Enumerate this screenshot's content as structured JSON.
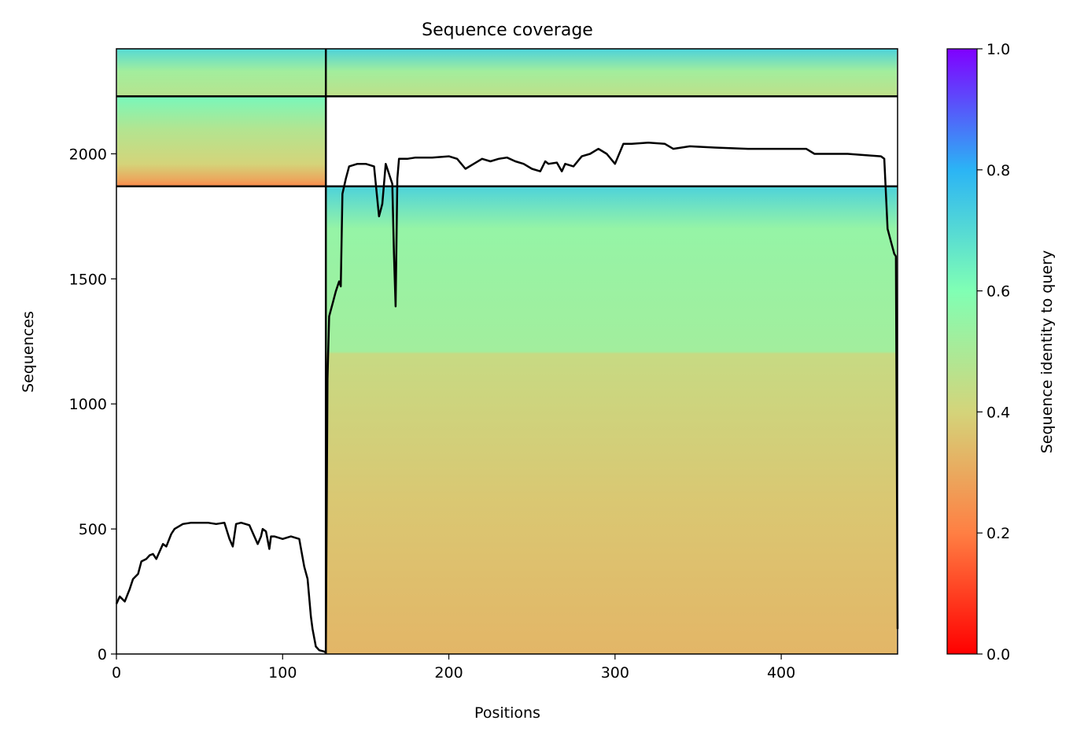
{
  "chart_data": {
    "type": "heatmap",
    "title": "Sequence coverage",
    "xlabel": "Positions",
    "ylabel": "Sequences",
    "xlim": [
      0,
      470
    ],
    "ylim": [
      0,
      2420
    ],
    "xticks": [
      0,
      100,
      200,
      300,
      400
    ],
    "yticks": [
      0,
      500,
      1000,
      1500,
      2000
    ],
    "grid": false,
    "colorbar": {
      "label": "Sequence identity to query",
      "range": [
        0,
        1
      ],
      "ticks": [
        0.0,
        0.2,
        0.4,
        0.6,
        0.8,
        1.0
      ],
      "tick_labels": [
        "0.0",
        "0.2",
        "0.4",
        "0.6",
        "0.8",
        "1.0"
      ],
      "colormap": "rainbow_r",
      "colors": [
        "#ff0000",
        "#ff7f43",
        "#d4d47a",
        "#80ffb4",
        "#2bb4f5",
        "#8000ff"
      ]
    },
    "blocks": [
      {
        "name": "",
        "x": [
          0,
          126
        ],
        "y": [
          0,
          1870
        ],
        "filled": false
      },
      {
        "name": "",
        "x": [
          126,
          470
        ],
        "y": [
          0,
          1870
        ],
        "filled": true,
        "identity_bands": [
          [
            0,
            0.33
          ],
          [
            600,
            0.37
          ],
          [
            1200,
            0.43
          ],
          [
            1210,
            0.52
          ],
          [
            1700,
            0.55
          ],
          [
            1870,
            0.72
          ]
        ]
      },
      {
        "name": "",
        "x": [
          0,
          126
        ],
        "y": [
          1870,
          2230
        ],
        "filled": true,
        "identity_bands": [
          [
            1870,
            0.22
          ],
          [
            1900,
            0.3
          ],
          [
            1960,
            0.4
          ],
          [
            2100,
            0.48
          ],
          [
            2230,
            0.62
          ]
        ]
      },
      {
        "name": "",
        "x": [
          126,
          470
        ],
        "y": [
          1870,
          2230
        ],
        "filled": false
      },
      {
        "name": "",
        "x": [
          0,
          126
        ],
        "y": [
          2230,
          2420
        ],
        "filled": true,
        "identity_bands": [
          [
            2230,
            0.47
          ],
          [
            2330,
            0.52
          ],
          [
            2420,
            0.7
          ]
        ]
      },
      {
        "name": "",
        "x": [
          126,
          470
        ],
        "y": [
          2230,
          2420
        ],
        "filled": true,
        "identity_bands": [
          [
            2230,
            0.45
          ],
          [
            2330,
            0.52
          ],
          [
            2420,
            0.72
          ]
        ]
      }
    ],
    "block_boundaries": {
      "x": [
        126
      ],
      "y": [
        1870,
        2230
      ]
    },
    "coverage": {
      "name": "",
      "x": [
        0,
        2,
        5,
        8,
        10,
        13,
        15,
        18,
        20,
        22,
        24,
        26,
        28,
        30,
        33,
        35,
        40,
        45,
        50,
        55,
        60,
        65,
        68,
        70,
        72,
        75,
        80,
        85,
        87,
        88,
        90,
        92,
        93,
        95,
        100,
        105,
        110,
        113,
        115,
        117,
        118,
        120,
        122,
        125,
        126,
        127,
        128,
        130,
        132,
        134,
        135,
        136,
        138,
        140,
        145,
        150,
        155,
        158,
        160,
        162,
        164,
        166,
        167,
        168,
        169,
        170,
        175,
        180,
        190,
        200,
        205,
        210,
        215,
        220,
        225,
        230,
        235,
        240,
        245,
        250,
        255,
        258,
        260,
        265,
        268,
        270,
        275,
        280,
        285,
        290,
        295,
        300,
        305,
        310,
        320,
        330,
        335,
        340,
        345,
        360,
        380,
        400,
        415,
        420,
        440,
        460,
        462,
        464,
        466,
        468,
        469,
        470
      ],
      "y": [
        200,
        230,
        210,
        260,
        300,
        320,
        370,
        380,
        395,
        400,
        380,
        410,
        440,
        430,
        480,
        500,
        520,
        525,
        525,
        525,
        520,
        525,
        460,
        430,
        520,
        525,
        515,
        440,
        470,
        500,
        490,
        420,
        470,
        470,
        460,
        470,
        460,
        350,
        300,
        150,
        100,
        30,
        15,
        10,
        5,
        1100,
        1350,
        1400,
        1450,
        1490,
        1470,
        1840,
        1900,
        1950,
        1960,
        1960,
        1950,
        1750,
        1800,
        1960,
        1920,
        1880,
        1600,
        1390,
        1900,
        1980,
        1980,
        1985,
        1985,
        1990,
        1980,
        1940,
        1960,
        1980,
        1970,
        1980,
        1985,
        1970,
        1960,
        1940,
        1930,
        1970,
        1960,
        1965,
        1930,
        1960,
        1950,
        1990,
        2000,
        2020,
        2000,
        1960,
        2040,
        2040,
        2045,
        2040,
        2020,
        2025,
        2030,
        2025,
        2020,
        2020,
        2020,
        2000,
        2000,
        1990,
        1980,
        1700,
        1650,
        1600,
        1590,
        100
      ]
    }
  }
}
